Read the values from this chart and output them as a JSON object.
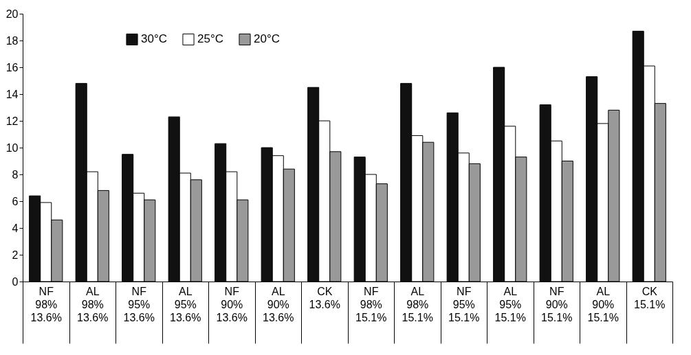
{
  "chart_data": {
    "type": "bar",
    "categories": [
      "NF\n98%\n\n13.6%",
      "AL\n98%\n\n13.6%",
      "NF\n95%\n\n13.6%",
      "AL\n95%\n\n13.6%",
      "NF\n90%\n\n13.6%",
      "AL\n90%\n\n13.6%",
      "CK\n\n\n13.6%",
      "NF\n98%\n\n15.1%",
      "AL\n98%\n\n15.1%",
      "NF\n95%\n\n15.1%",
      "AL\n95%\n\n15.1%",
      "NF\n90%\n\n15.1%",
      "AL\n90%\n\n15.1%",
      "CK\n\n\n15.1%"
    ],
    "series": [
      {
        "name": "30°C",
        "color": "#111111",
        "values": [
          6.4,
          14.8,
          9.5,
          12.3,
          10.3,
          10.0,
          14.5,
          9.3,
          14.8,
          12.6,
          16.0,
          13.2,
          15.3,
          18.7
        ]
      },
      {
        "name": "25°C",
        "color": "#ffffff",
        "values": [
          5.9,
          8.2,
          6.6,
          8.1,
          8.2,
          9.4,
          12.0,
          8.0,
          10.9,
          9.6,
          11.6,
          10.5,
          11.8,
          16.1
        ]
      },
      {
        "name": "20°C",
        "color": "#999999",
        "values": [
          4.6,
          6.8,
          6.1,
          7.6,
          6.1,
          8.4,
          9.7,
          7.3,
          10.4,
          8.8,
          9.3,
          9.0,
          12.8,
          13.3
        ]
      }
    ],
    "ylim": [
      0,
      20
    ],
    "yticks": [
      0,
      2,
      4,
      6,
      8,
      10,
      12,
      14,
      16,
      18,
      20
    ],
    "grid": false,
    "legend": "top left"
  }
}
